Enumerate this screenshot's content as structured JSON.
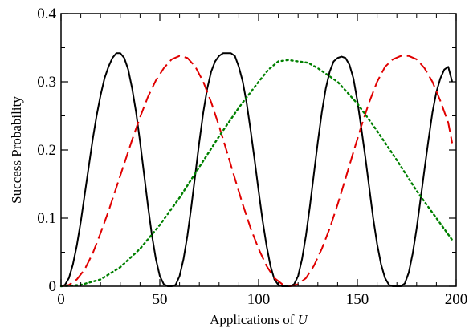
{
  "chart_data": {
    "type": "line",
    "xlabel": "Applications of",
    "xlabel_symbol": "U",
    "ylabel": "Success Probability",
    "xlim": [
      0,
      200
    ],
    "ylim": [
      0,
      0.4
    ],
    "x_ticks": [
      0,
      50,
      100,
      150,
      200
    ],
    "x_tick_labels": [
      "0",
      "50",
      "100",
      "150",
      "200"
    ],
    "y_ticks": [
      0,
      0.1,
      0.2,
      0.3,
      0.4
    ],
    "y_tick_labels": [
      "0",
      "0.1",
      "0.2",
      "0.3",
      "0.4"
    ],
    "grid": false,
    "legend": "none",
    "series": [
      {
        "color": "#000000",
        "line_style": "solid",
        "points": [
          [
            0,
            0
          ],
          [
            2,
            0.002
          ],
          [
            4,
            0.012
          ],
          [
            6,
            0.032
          ],
          [
            8,
            0.06
          ],
          [
            10,
            0.095
          ],
          [
            12,
            0.135
          ],
          [
            14,
            0.175
          ],
          [
            16,
            0.215
          ],
          [
            18,
            0.25
          ],
          [
            20,
            0.28
          ],
          [
            22,
            0.305
          ],
          [
            24,
            0.322
          ],
          [
            26,
            0.335
          ],
          [
            28,
            0.342
          ],
          [
            30,
            0.342
          ],
          [
            32,
            0.335
          ],
          [
            34,
            0.318
          ],
          [
            36,
            0.29
          ],
          [
            38,
            0.255
          ],
          [
            40,
            0.212
          ],
          [
            42,
            0.165
          ],
          [
            44,
            0.118
          ],
          [
            46,
            0.075
          ],
          [
            48,
            0.04
          ],
          [
            50,
            0.015
          ],
          [
            52,
            0.003
          ],
          [
            54,
            0
          ],
          [
            56,
            0
          ],
          [
            58,
            0.002
          ],
          [
            60,
            0.015
          ],
          [
            62,
            0.04
          ],
          [
            64,
            0.075
          ],
          [
            66,
            0.118
          ],
          [
            68,
            0.165
          ],
          [
            70,
            0.212
          ],
          [
            72,
            0.255
          ],
          [
            74,
            0.29
          ],
          [
            76,
            0.315
          ],
          [
            78,
            0.33
          ],
          [
            80,
            0.338
          ],
          [
            82,
            0.342
          ],
          [
            84,
            0.342
          ],
          [
            86,
            0.342
          ],
          [
            88,
            0.338
          ],
          [
            90,
            0.322
          ],
          [
            92,
            0.3
          ],
          [
            94,
            0.268
          ],
          [
            96,
            0.228
          ],
          [
            98,
            0.185
          ],
          [
            100,
            0.14
          ],
          [
            102,
            0.097
          ],
          [
            104,
            0.06
          ],
          [
            106,
            0.03
          ],
          [
            108,
            0.01
          ],
          [
            110,
            0.002
          ],
          [
            112,
            0
          ],
          [
            114,
            0
          ],
          [
            116,
            0
          ],
          [
            118,
            0.003
          ],
          [
            120,
            0.015
          ],
          [
            122,
            0.04
          ],
          [
            124,
            0.075
          ],
          [
            126,
            0.118
          ],
          [
            128,
            0.165
          ],
          [
            130,
            0.212
          ],
          [
            132,
            0.255
          ],
          [
            134,
            0.29
          ],
          [
            136,
            0.315
          ],
          [
            138,
            0.33
          ],
          [
            140,
            0.335
          ],
          [
            142,
            0.337
          ],
          [
            144,
            0.335
          ],
          [
            146,
            0.325
          ],
          [
            148,
            0.305
          ],
          [
            150,
            0.272
          ],
          [
            152,
            0.232
          ],
          [
            154,
            0.19
          ],
          [
            156,
            0.145
          ],
          [
            158,
            0.1
          ],
          [
            160,
            0.062
          ],
          [
            162,
            0.032
          ],
          [
            164,
            0.012
          ],
          [
            166,
            0.002
          ],
          [
            168,
            0
          ],
          [
            170,
            0
          ],
          [
            172,
            0
          ],
          [
            174,
            0.004
          ],
          [
            176,
            0.02
          ],
          [
            178,
            0.048
          ],
          [
            180,
            0.085
          ],
          [
            182,
            0.128
          ],
          [
            184,
            0.172
          ],
          [
            186,
            0.215
          ],
          [
            188,
            0.255
          ],
          [
            190,
            0.285
          ],
          [
            192,
            0.305
          ],
          [
            194,
            0.318
          ],
          [
            196,
            0.322
          ],
          [
            198,
            0.3
          ]
        ]
      },
      {
        "color": "#e00000",
        "line_style": "dashed",
        "points": [
          [
            0,
            0
          ],
          [
            4,
            0.002
          ],
          [
            8,
            0.01
          ],
          [
            12,
            0.025
          ],
          [
            16,
            0.048
          ],
          [
            20,
            0.078
          ],
          [
            24,
            0.11
          ],
          [
            28,
            0.145
          ],
          [
            32,
            0.18
          ],
          [
            36,
            0.215
          ],
          [
            40,
            0.248
          ],
          [
            44,
            0.278
          ],
          [
            48,
            0.302
          ],
          [
            52,
            0.32
          ],
          [
            56,
            0.333
          ],
          [
            60,
            0.338
          ],
          [
            64,
            0.335
          ],
          [
            68,
            0.322
          ],
          [
            72,
            0.3
          ],
          [
            76,
            0.27
          ],
          [
            80,
            0.235
          ],
          [
            84,
            0.197
          ],
          [
            88,
            0.158
          ],
          [
            92,
            0.12
          ],
          [
            96,
            0.085
          ],
          [
            100,
            0.055
          ],
          [
            104,
            0.03
          ],
          [
            108,
            0.012
          ],
          [
            112,
            0.003
          ],
          [
            116,
            0
          ],
          [
            120,
            0.003
          ],
          [
            124,
            0.012
          ],
          [
            128,
            0.03
          ],
          [
            132,
            0.055
          ],
          [
            136,
            0.085
          ],
          [
            140,
            0.12
          ],
          [
            144,
            0.158
          ],
          [
            148,
            0.197
          ],
          [
            152,
            0.235
          ],
          [
            156,
            0.27
          ],
          [
            160,
            0.3
          ],
          [
            164,
            0.322
          ],
          [
            168,
            0.333
          ],
          [
            172,
            0.338
          ],
          [
            176,
            0.338
          ],
          [
            180,
            0.333
          ],
          [
            184,
            0.32
          ],
          [
            188,
            0.3
          ],
          [
            192,
            0.272
          ],
          [
            196,
            0.24
          ],
          [
            198,
            0.21
          ]
        ]
      },
      {
        "color": "#008000",
        "line_style": "dotted",
        "points": [
          [
            0,
            0
          ],
          [
            10,
            0.002
          ],
          [
            20,
            0.01
          ],
          [
            30,
            0.028
          ],
          [
            40,
            0.055
          ],
          [
            50,
            0.09
          ],
          [
            60,
            0.13
          ],
          [
            70,
            0.175
          ],
          [
            80,
            0.22
          ],
          [
            90,
            0.262
          ],
          [
            100,
            0.3
          ],
          [
            105,
            0.318
          ],
          [
            110,
            0.33
          ],
          [
            115,
            0.332
          ],
          [
            120,
            0.33
          ],
          [
            125,
            0.328
          ],
          [
            130,
            0.32
          ],
          [
            140,
            0.3
          ],
          [
            150,
            0.268
          ],
          [
            160,
            0.228
          ],
          [
            170,
            0.185
          ],
          [
            180,
            0.14
          ],
          [
            190,
            0.1
          ],
          [
            198,
            0.068
          ]
        ]
      }
    ]
  }
}
